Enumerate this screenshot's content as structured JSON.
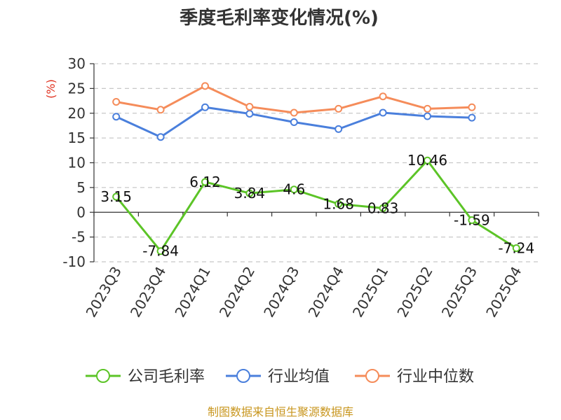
{
  "chart_data": {
    "type": "line",
    "title": "季度毛利率变化情况(%)",
    "ylabel": "(%)",
    "ylim": [
      -10,
      30
    ],
    "yticks": [
      30,
      25,
      20,
      15,
      10,
      5,
      0,
      -5,
      -10
    ],
    "categories": [
      "2023Q3",
      "2023Q4",
      "2024Q1",
      "2024Q2",
      "2024Q3",
      "2024Q4",
      "2025Q1",
      "2025Q2",
      "2025Q3",
      "2025Q4"
    ],
    "grid": true,
    "legend_position": "bottom",
    "series": [
      {
        "name": "公司毛利率",
        "color": "#5cc427",
        "values": [
          3.15,
          -7.84,
          6.12,
          3.84,
          4.6,
          1.68,
          0.83,
          10.46,
          -1.59,
          -7.24
        ],
        "labels": [
          "3.15",
          "-7.84",
          "6.12",
          "3.84",
          "4.6",
          "1.68",
          "0.83",
          "10.46",
          "-1.59",
          "-7.24"
        ]
      },
      {
        "name": "行业均值",
        "color": "#4a7fdc",
        "values": [
          19.3,
          15.2,
          21.2,
          19.9,
          18.2,
          16.8,
          20.1,
          19.4,
          19.1,
          null
        ]
      },
      {
        "name": "行业中位数",
        "color": "#f58c5a",
        "values": [
          22.3,
          20.7,
          25.5,
          21.3,
          20.1,
          20.9,
          23.4,
          20.9,
          21.2,
          null
        ]
      }
    ]
  },
  "source": "制图数据来自恒生聚源数据库"
}
